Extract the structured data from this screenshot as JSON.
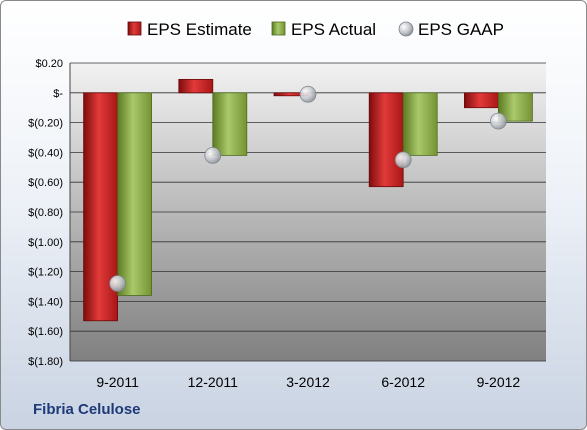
{
  "chart_data": {
    "type": "bar",
    "categories": [
      "9-2011",
      "12-2011",
      "3-2012",
      "6-2012",
      "9-2012"
    ],
    "series": [
      {
        "name": "EPS Estimate",
        "kind": "bar",
        "color": "#cc1f1f",
        "values": [
          -1.53,
          0.09,
          -0.02,
          -0.63,
          -0.1
        ]
      },
      {
        "name": "EPS Actual",
        "kind": "bar",
        "color": "#8fb040",
        "values": [
          -1.36,
          -0.42,
          0.0,
          -0.42,
          -0.19
        ]
      },
      {
        "name": "EPS GAAP",
        "kind": "marker",
        "color": "#b9bec6",
        "values": [
          -1.28,
          -0.42,
          -0.01,
          -0.45,
          -0.19
        ]
      }
    ],
    "yticks": [
      "$0.20",
      "$-",
      "$(0.20)",
      "$(0.40)",
      "$(0.60)",
      "$(0.80)",
      "$(1.00)",
      "$(1.20)",
      "$(1.40)",
      "$(1.60)",
      "$(1.80)"
    ],
    "ytick_values": [
      0.2,
      0,
      -0.2,
      -0.4,
      -0.6,
      -0.8,
      -1.0,
      -1.2,
      -1.4,
      -1.6,
      -1.8
    ],
    "ylim": [
      -1.8,
      0.2
    ],
    "grid": true,
    "legend_position": "top"
  },
  "footer": {
    "company": "Fibria Celulose"
  }
}
